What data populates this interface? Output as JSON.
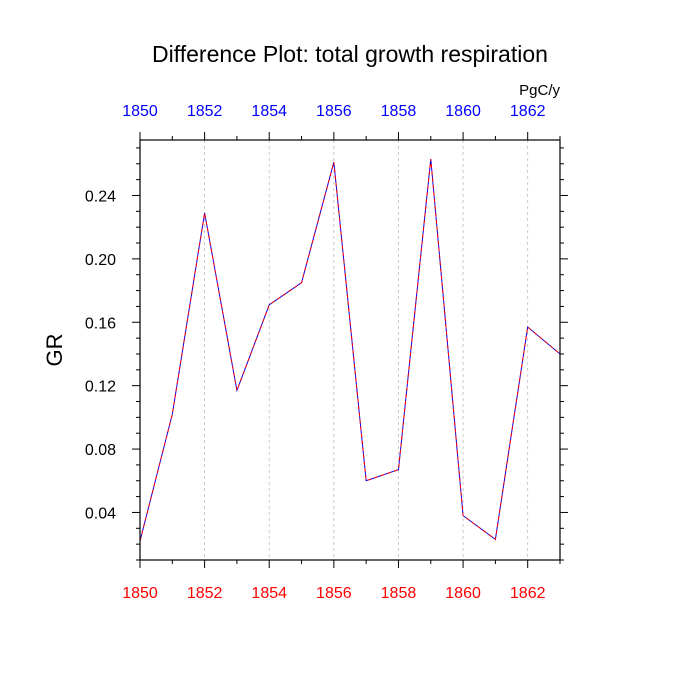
{
  "chart_data": {
    "type": "line",
    "title": "Difference Plot: total growth respiration",
    "ylabel": "GR",
    "units_label": "PgC/y",
    "xlim": [
      1850,
      1863
    ],
    "ylim": [
      0.01,
      0.275
    ],
    "x_ticks": [
      1850,
      1852,
      1854,
      1856,
      1858,
      1860,
      1862
    ],
    "x_tick_labels_bottom": [
      "1850",
      "1852",
      "1854",
      "1856",
      "1858",
      "1860",
      "1862"
    ],
    "x_tick_labels_top": [
      "1850",
      "1852",
      "1854",
      "1856",
      "1858",
      "1860",
      "1862"
    ],
    "y_ticks": [
      0.04,
      0.08,
      0.12,
      0.16,
      0.2,
      0.24
    ],
    "y_tick_labels": [
      "0.04",
      "0.08",
      "0.12",
      "0.16",
      "0.20",
      "0.24"
    ],
    "grid": "vertical-dashed",
    "colors": {
      "bottom_axis_labels": "#ff0000",
      "top_axis_labels": "#0000ff",
      "series_a": "#0000ff",
      "series_b": "#ff0000",
      "gridline": "#bdbdbd"
    },
    "series": [
      {
        "x": [
          1850,
          1851,
          1852,
          1853,
          1854,
          1855,
          1856,
          1857,
          1858,
          1859,
          1860,
          1861,
          1862,
          1863
        ],
        "values": [
          0.022,
          0.102,
          0.229,
          0.117,
          0.171,
          0.185,
          0.261,
          0.06,
          0.067,
          0.263,
          0.038,
          0.023,
          0.157,
          0.14
        ],
        "color": "#0000ff",
        "style": "solid"
      },
      {
        "x": [
          1850,
          1851,
          1852,
          1853,
          1854,
          1855,
          1856,
          1857,
          1858,
          1859,
          1860,
          1861,
          1862,
          1863
        ],
        "values": [
          0.022,
          0.102,
          0.229,
          0.117,
          0.171,
          0.185,
          0.261,
          0.06,
          0.067,
          0.263,
          0.038,
          0.023,
          0.157,
          0.14
        ],
        "color": "#ff0000",
        "style": "dashed"
      }
    ]
  }
}
